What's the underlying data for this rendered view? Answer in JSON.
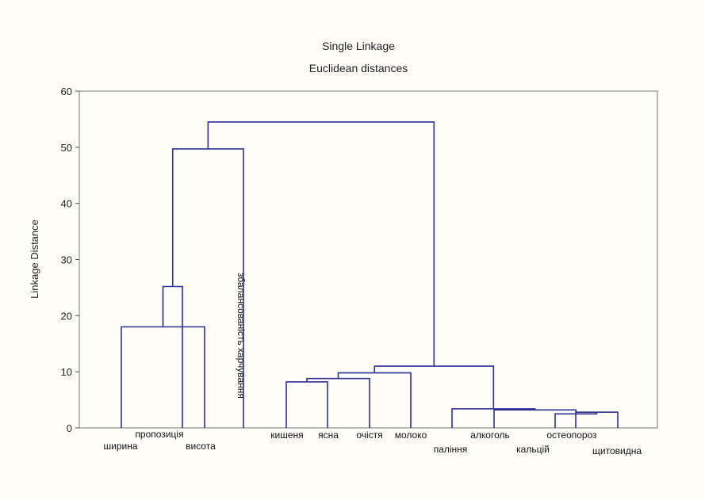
{
  "chart_data": {
    "type": "dendrogram",
    "title": "Single Linkage",
    "subtitle": "Euclidean distances",
    "ylabel": "Linkage Distance",
    "ylim": [
      0,
      60
    ],
    "yticks": [
      0,
      10,
      20,
      30,
      40,
      50,
      60
    ],
    "leaves": [
      "ширина",
      "пропозиція",
      "висота",
      "збалансованість харчування",
      "кишеня",
      "ясна",
      "очістя",
      "молоко",
      "паління",
      "алкоголь",
      "кальцій",
      "остеопороз",
      "щитовидна"
    ],
    "merges": [
      {
        "a": 0,
        "b": 2,
        "height": 18
      },
      {
        "a": 1,
        "b": 13,
        "height": 25.2
      },
      {
        "a": 4,
        "b": 5,
        "height": 8.2
      },
      {
        "a": 15,
        "b": 6,
        "height": 8.8
      },
      {
        "a": 16,
        "b": 7,
        "height": 9.8
      },
      {
        "a": 11,
        "b": 12,
        "height": 2.8
      },
      {
        "a": 10,
        "b": 18,
        "height": 2.5
      },
      {
        "a": 9,
        "b": 19,
        "height": 3.2
      },
      {
        "a": 8,
        "b": 20,
        "height": 3.4
      },
      {
        "a": 17,
        "b": 21,
        "height": 11
      },
      {
        "a": 14,
        "b": 3,
        "height": 49.7
      },
      {
        "a": 23,
        "b": 22,
        "height": 54.5
      }
    ]
  }
}
